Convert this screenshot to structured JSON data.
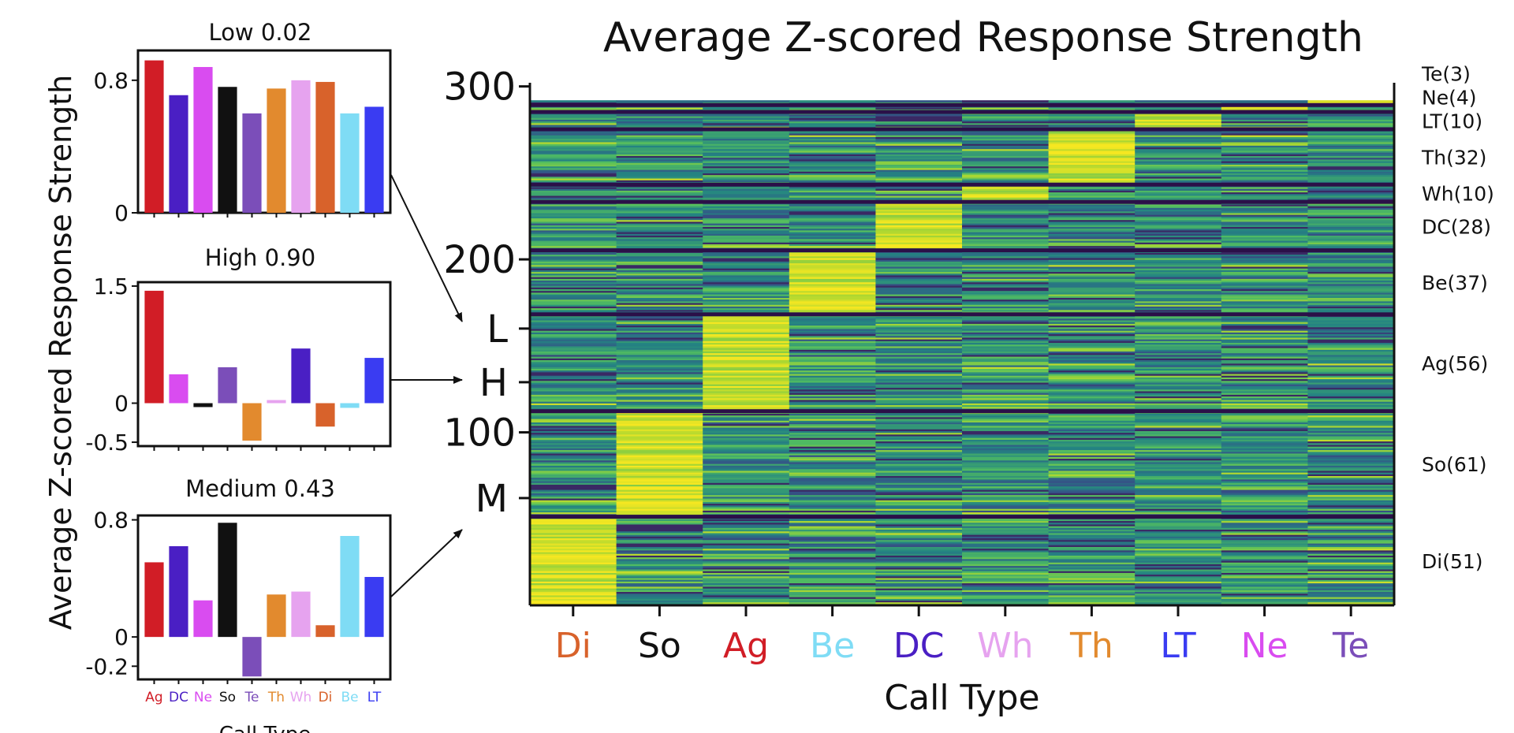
{
  "colors": {
    "Di": "#d8622b",
    "So": "#111111",
    "Ag": "#d11d26",
    "Be": "#7fdcf5",
    "DC": "#4a1fc4",
    "Wh": "#e6a3ef",
    "Th": "#e28a2e",
    "LT": "#3a3cf2",
    "Ne": "#d94cf0",
    "Te": "#7b4eb9",
    "viridis_low": "#3b1f5b",
    "viridis_high": "#f6e721"
  },
  "panel_ylabel": "Average Z-scored Response Strength",
  "panel_xlabel": "Call Type",
  "chart_data": [
    {
      "type": "bar",
      "title": "Low 0.02",
      "categories": [
        "Ag",
        "DC",
        "Ne",
        "So",
        "Te",
        "Th",
        "Wh",
        "Di",
        "Be",
        "LT"
      ],
      "values": [
        0.92,
        0.71,
        0.88,
        0.76,
        0.6,
        0.75,
        0.8,
        0.79,
        0.6,
        0.64
      ],
      "yticks": [
        "0",
        "0.8"
      ],
      "ylim": [
        0,
        0.98
      ]
    },
    {
      "type": "bar",
      "title": "High 0.90",
      "categories": [
        "Ag",
        "Ne",
        "So",
        "Te",
        "Th",
        "Wh",
        "DC",
        "Di",
        "Be",
        "LT"
      ],
      "values": [
        1.44,
        0.37,
        -0.05,
        0.46,
        -0.48,
        0.04,
        0.7,
        -0.3,
        -0.06,
        0.58
      ],
      "yticks": [
        "-0.5",
        "0",
        "1.5"
      ],
      "ylim": [
        -0.55,
        1.55
      ]
    },
    {
      "type": "bar",
      "title": "Medium 0.43",
      "categories": [
        "Ag",
        "DC",
        "Ne",
        "So",
        "Te",
        "Th",
        "Wh",
        "Di",
        "Be",
        "LT"
      ],
      "values": [
        0.51,
        0.62,
        0.25,
        0.78,
        -0.27,
        0.29,
        0.31,
        0.08,
        0.69,
        0.41
      ],
      "yticks": [
        "-0.2",
        "0",
        "0.8"
      ],
      "ylim": [
        -0.29,
        0.83
      ],
      "xtick_labels_shown": true
    },
    {
      "type": "heatmap",
      "title": "Average Z-scored Response Strength",
      "xlabel": "Call Type",
      "columns": [
        "Di",
        "So",
        "Ag",
        "Be",
        "DC",
        "Wh",
        "Th",
        "LT",
        "Ne",
        "Te"
      ],
      "ylim": [
        0,
        293
      ],
      "yticks": [
        {
          "value": 300,
          "label": "300"
        },
        {
          "value": 200,
          "label": "200"
        },
        {
          "value": 100,
          "label": "100"
        }
      ],
      "row_markers": [
        {
          "value": 160,
          "label": "L"
        },
        {
          "value": 129,
          "label": "H"
        },
        {
          "value": 62,
          "label": "M"
        }
      ],
      "groups": [
        {
          "label": "Di(51)",
          "name": "Di",
          "count": 51
        },
        {
          "label": "So(61)",
          "name": "So",
          "count": 61
        },
        {
          "label": "Ag(56)",
          "name": "Ag",
          "count": 56
        },
        {
          "label": "Be(37)",
          "name": "Be",
          "count": 37
        },
        {
          "label": "DC(28)",
          "name": "DC",
          "count": 28
        },
        {
          "label": "Wh(10)",
          "name": "Wh",
          "count": 10
        },
        {
          "label": "Th(32)",
          "name": "Th",
          "count": 32
        },
        {
          "label": "LT(10)",
          "name": "LT",
          "count": 10
        },
        {
          "label": "Ne(4)",
          "name": "Ne",
          "count": 4
        },
        {
          "label": "Te(3)",
          "name": "Te",
          "count": 3
        }
      ],
      "colormap": "viridis"
    }
  ]
}
